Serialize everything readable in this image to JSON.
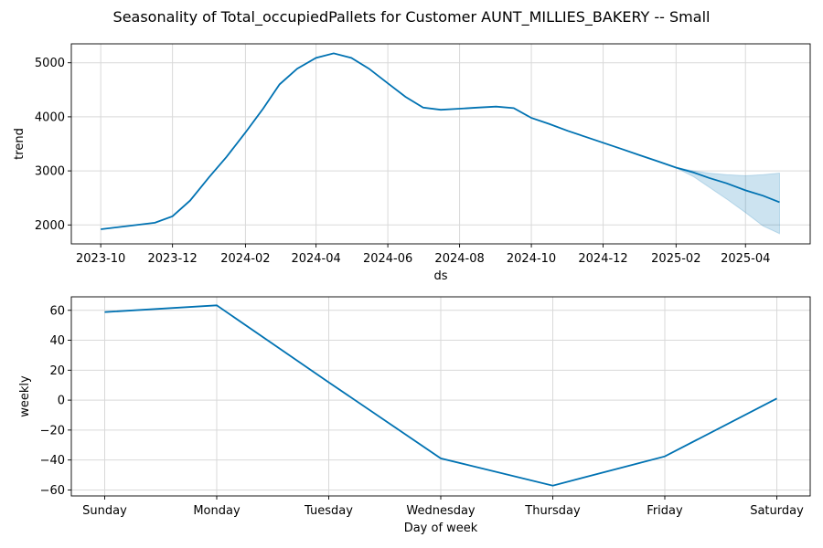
{
  "figure_title": "Seasonality of Total_occupiedPallets for Customer AUNT_MILLIES_BAKERY -- Small",
  "colors": {
    "line": "#0072B2",
    "band": "#0072B2",
    "grid": "#d9d9d9"
  },
  "chart_data": [
    {
      "type": "line",
      "xlabel": "ds",
      "ylabel": "trend",
      "x_type": "date",
      "xlim": [
        "2023-09-06",
        "2025-05-26"
      ],
      "ylim": [
        1650,
        5350
      ],
      "xticks": [
        "2023-10",
        "2023-12",
        "2024-02",
        "2024-04",
        "2024-06",
        "2024-08",
        "2024-10",
        "2024-12",
        "2025-02",
        "2025-04"
      ],
      "yticks": [
        2000,
        3000,
        4000,
        5000
      ],
      "grid": true,
      "series": [
        {
          "x": [
            "2023-10-01",
            "2023-11-16",
            "2023-12-01",
            "2023-12-16",
            "2024-01-01",
            "2024-01-16",
            "2024-02-01",
            "2024-02-16",
            "2024-03-01",
            "2024-03-16",
            "2024-04-01",
            "2024-04-16",
            "2024-05-01",
            "2024-05-16",
            "2024-06-01",
            "2024-06-16",
            "2024-07-01",
            "2024-07-16",
            "2024-08-01",
            "2024-08-16",
            "2024-09-01",
            "2024-09-16",
            "2024-10-01",
            "2024-10-16",
            "2024-11-01",
            "2024-11-16",
            "2024-12-01",
            "2024-12-16",
            "2025-01-01",
            "2025-01-16",
            "2025-02-01",
            "2025-02-16",
            "2025-03-01",
            "2025-03-16",
            "2025-04-01",
            "2025-04-16",
            "2025-04-30"
          ],
          "values": [
            1920,
            2040,
            2160,
            2450,
            2880,
            3260,
            3710,
            4150,
            4600,
            4890,
            5090,
            5175,
            5090,
            4890,
            4620,
            4370,
            4170,
            4130,
            4150,
            4170,
            4190,
            4160,
            3980,
            3870,
            3740,
            3630,
            3520,
            3410,
            3290,
            3180,
            3060,
            2970,
            2870,
            2770,
            2640,
            2540,
            2420
          ],
          "uncertainty": {
            "x": [
              "2025-02-01",
              "2025-02-16",
              "2025-03-01",
              "2025-03-16",
              "2025-04-01",
              "2025-04-16",
              "2025-04-30"
            ],
            "lower": [
              3055,
              2890,
              2700,
              2480,
              2230,
              1980,
              1840
            ],
            "upper": [
              3065,
              3000,
              2960,
              2930,
              2910,
              2930,
              2960
            ]
          }
        }
      ]
    },
    {
      "type": "line",
      "xlabel": "Day of week",
      "ylabel": "weekly",
      "categories": [
        "Sunday",
        "Monday",
        "Tuesday",
        "Wednesday",
        "Thursday",
        "Friday",
        "Saturday"
      ],
      "ylim": [
        -64,
        69
      ],
      "yticks": [
        -60,
        -40,
        -20,
        0,
        20,
        40,
        60
      ],
      "grid": true,
      "series": [
        {
          "values": [
            58.8,
            63.3,
            11.9,
            -38.9,
            -57.1,
            -37.6,
            1.1
          ]
        }
      ]
    }
  ]
}
